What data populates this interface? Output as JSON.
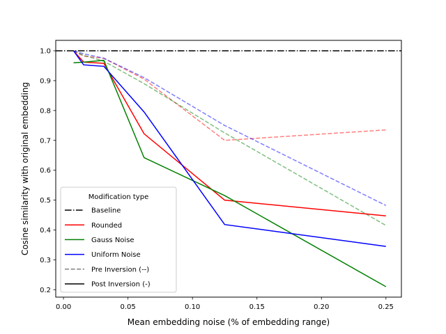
{
  "chart_data": {
    "type": "line",
    "title": "",
    "xlabel": "Mean embedding noise (% of embedding range)",
    "ylabel": "Cosine similarity with original embedding",
    "xlim": [
      -0.006,
      0.262
    ],
    "ylim": [
      0.175,
      1.035
    ],
    "xticks": [
      0.0,
      0.05,
      0.1,
      0.15,
      0.2,
      0.25
    ],
    "xtick_labels": [
      "0.00",
      "0.05",
      "0.10",
      "0.15",
      "0.20",
      "0.25"
    ],
    "yticks": [
      0.2,
      0.3,
      0.4,
      0.5,
      0.6,
      0.7,
      0.8,
      0.9,
      1.0
    ],
    "ytick_labels": [
      "0.2",
      "0.3",
      "0.4",
      "0.5",
      "0.6",
      "0.7",
      "0.8",
      "0.9",
      "1.0"
    ],
    "grid": false,
    "baseline": {
      "y": 1.0,
      "color": "#000000",
      "style": "dashdot"
    },
    "series": [
      {
        "name": "Rounded",
        "stage": "pre",
        "color": "#ff0000",
        "style": "dashed",
        "x": [
          0.0078,
          0.0156,
          0.0313,
          0.0625,
          0.125,
          0.25
        ],
        "y": [
          1.0,
          0.982,
          0.975,
          0.905,
          0.7,
          0.735
        ]
      },
      {
        "name": "Gauss Noise",
        "stage": "pre",
        "color": "#008000",
        "style": "dashed",
        "x": [
          0.0078,
          0.0156,
          0.0313,
          0.0625,
          0.125,
          0.25
        ],
        "y": [
          1.0,
          0.985,
          0.965,
          0.89,
          0.725,
          0.415
        ]
      },
      {
        "name": "Uniform Noise",
        "stage": "pre",
        "color": "#0000ff",
        "style": "dashed",
        "x": [
          0.0078,
          0.0156,
          0.0313,
          0.0625,
          0.125,
          0.25
        ],
        "y": [
          1.0,
          0.99,
          0.975,
          0.91,
          0.75,
          0.482
        ]
      },
      {
        "name": "Rounded",
        "stage": "post",
        "color": "#ff0000",
        "style": "solid",
        "x": [
          0.0078,
          0.0156,
          0.0313,
          0.0625,
          0.125,
          0.25
        ],
        "y": [
          1.0,
          0.962,
          0.958,
          0.722,
          0.5,
          0.447
        ]
      },
      {
        "name": "Gauss Noise",
        "stage": "post",
        "color": "#008000",
        "style": "solid",
        "x": [
          0.0078,
          0.0156,
          0.0313,
          0.0625,
          0.125,
          0.25
        ],
        "y": [
          0.96,
          0.962,
          0.968,
          0.642,
          0.515,
          0.21
        ]
      },
      {
        "name": "Uniform Noise",
        "stage": "post",
        "color": "#0000ff",
        "style": "solid",
        "x": [
          0.0078,
          0.0156,
          0.0313,
          0.0625,
          0.125,
          0.25
        ],
        "y": [
          1.0,
          0.953,
          0.948,
          0.795,
          0.418,
          0.345
        ]
      }
    ],
    "legend": {
      "title": "Modification type",
      "placement": "lower-left",
      "entries": [
        {
          "label": "Baseline",
          "color": "#000000",
          "style": "dashdot"
        },
        {
          "label": "Rounded",
          "color": "#ff0000",
          "style": "solid"
        },
        {
          "label": "Gauss Noise",
          "color": "#008000",
          "style": "solid"
        },
        {
          "label": "Uniform Noise",
          "color": "#0000ff",
          "style": "solid"
        },
        {
          "label": "Pre Inversion (--)",
          "color": "#808080",
          "style": "dashed"
        },
        {
          "label": "Post Inversion (-)",
          "color": "#000000",
          "style": "solid"
        }
      ]
    }
  }
}
